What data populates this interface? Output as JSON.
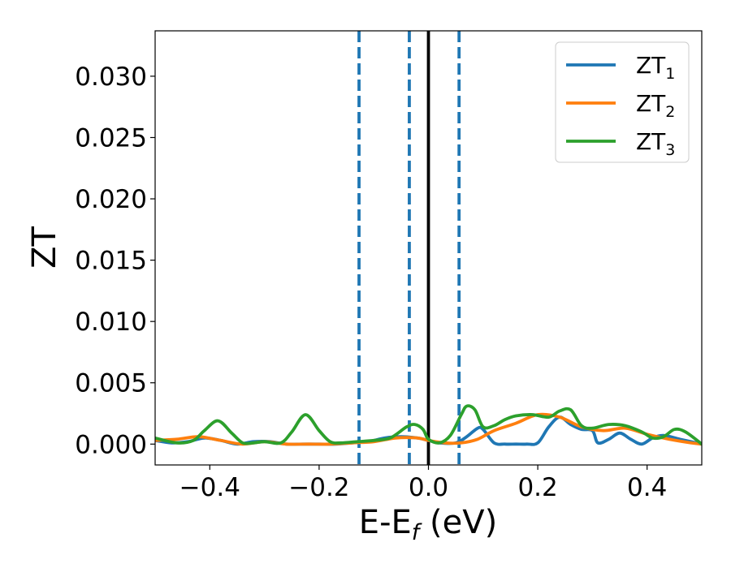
{
  "chart_data": {
    "type": "line",
    "xlabel": "E-E",
    "xlabel_sub": "f",
    "xlabel_unit": " (eV)",
    "ylabel": "ZT",
    "xlim": [
      -0.5,
      0.5
    ],
    "ylim": [
      -0.0017,
      0.0337
    ],
    "xticks": [
      -0.4,
      -0.2,
      0.0,
      0.2,
      0.4
    ],
    "xtick_labels": [
      "−0.4",
      "−0.2",
      "0.0",
      "0.2",
      "0.4"
    ],
    "yticks": [
      0.0,
      0.005,
      0.01,
      0.015,
      0.02,
      0.025,
      0.03
    ],
    "ytick_labels": [
      "0.000",
      "0.005",
      "0.010",
      "0.015",
      "0.020",
      "0.025",
      "0.030"
    ],
    "legend_position": "top-right",
    "vlines": [
      {
        "x": -0.127,
        "style": "dashed",
        "color": "#1f77b4"
      },
      {
        "x": -0.035,
        "style": "dashed",
        "color": "#1f77b4"
      },
      {
        "x": 0.0,
        "style": "solid",
        "color": "#000000"
      },
      {
        "x": 0.056,
        "style": "dashed",
        "color": "#1f77b4"
      }
    ],
    "series": [
      {
        "name": "ZT",
        "sub": "1",
        "color": "#1f77b4",
        "x": [
          -0.5,
          -0.47,
          -0.44,
          -0.41,
          -0.38,
          -0.35,
          -0.32,
          -0.29,
          -0.26,
          -0.23,
          -0.2,
          -0.17,
          -0.14,
          -0.11,
          -0.08,
          -0.05,
          -0.02,
          0.0,
          0.02,
          0.05,
          0.07,
          0.09,
          0.1,
          0.12,
          0.14,
          0.16,
          0.18,
          0.2,
          0.22,
          0.24,
          0.26,
          0.28,
          0.3,
          0.31,
          0.33,
          0.35,
          0.37,
          0.39,
          0.41,
          0.43,
          0.46,
          0.5
        ],
        "y": [
          0.0003,
          0.0001,
          0.0002,
          0.0005,
          0.0003,
          0.0,
          0.0002,
          0.0002,
          0.0,
          0.0,
          0.0,
          0.0,
          0.0001,
          0.0002,
          0.0005,
          0.0006,
          0.0005,
          0.0003,
          0.0001,
          0.0001,
          0.0006,
          0.0013,
          0.0012,
          0.0001,
          0.0,
          0.0,
          0.0,
          0.0001,
          0.0014,
          0.0022,
          0.0016,
          0.0012,
          0.0011,
          0.0001,
          0.0004,
          0.0009,
          0.0004,
          0.0,
          0.0005,
          0.0007,
          0.0004,
          0.0
        ]
      },
      {
        "name": "ZT",
        "sub": "2",
        "color": "#ff7f0e",
        "x": [
          -0.5,
          -0.46,
          -0.42,
          -0.38,
          -0.34,
          -0.3,
          -0.26,
          -0.22,
          -0.18,
          -0.14,
          -0.1,
          -0.06,
          -0.02,
          0.0,
          0.03,
          0.06,
          0.09,
          0.12,
          0.16,
          0.2,
          0.24,
          0.28,
          0.32,
          0.36,
          0.4,
          0.44,
          0.48,
          0.5
        ],
        "y": [
          0.0003,
          0.0004,
          0.0006,
          0.0003,
          0.0,
          0.0002,
          0.0,
          0.0,
          0.0,
          0.0001,
          0.0002,
          0.0005,
          0.0005,
          0.0003,
          0.0001,
          0.0001,
          0.0004,
          0.0011,
          0.0017,
          0.0024,
          0.0022,
          0.0014,
          0.0011,
          0.0013,
          0.0008,
          0.0004,
          0.0001,
          0.0
        ]
      },
      {
        "name": "ZT",
        "sub": "3",
        "color": "#2ca02c",
        "x": [
          -0.5,
          -0.46,
          -0.43,
          -0.41,
          -0.385,
          -0.36,
          -0.34,
          -0.32,
          -0.3,
          -0.27,
          -0.25,
          -0.225,
          -0.2,
          -0.18,
          -0.16,
          -0.13,
          -0.1,
          -0.07,
          -0.04,
          -0.025,
          -0.01,
          0.0,
          0.02,
          0.04,
          0.06,
          0.07,
          0.085,
          0.1,
          0.12,
          0.14,
          0.16,
          0.19,
          0.22,
          0.24,
          0.26,
          0.28,
          0.3,
          0.33,
          0.36,
          0.39,
          0.41,
          0.43,
          0.45,
          0.47,
          0.5
        ],
        "y": [
          0.0005,
          0.0001,
          0.0003,
          0.0011,
          0.0019,
          0.0009,
          0.0001,
          0.0001,
          0.0002,
          0.0001,
          0.001,
          0.0024,
          0.0011,
          0.0002,
          0.0001,
          0.0002,
          0.0003,
          0.0005,
          0.0014,
          0.0016,
          0.0012,
          0.0004,
          0.0001,
          0.0007,
          0.0024,
          0.0031,
          0.0028,
          0.0014,
          0.0015,
          0.002,
          0.0023,
          0.0024,
          0.0022,
          0.0027,
          0.0028,
          0.0015,
          0.0013,
          0.0016,
          0.0015,
          0.001,
          0.0005,
          0.0006,
          0.0012,
          0.001,
          0.0
        ]
      }
    ]
  }
}
